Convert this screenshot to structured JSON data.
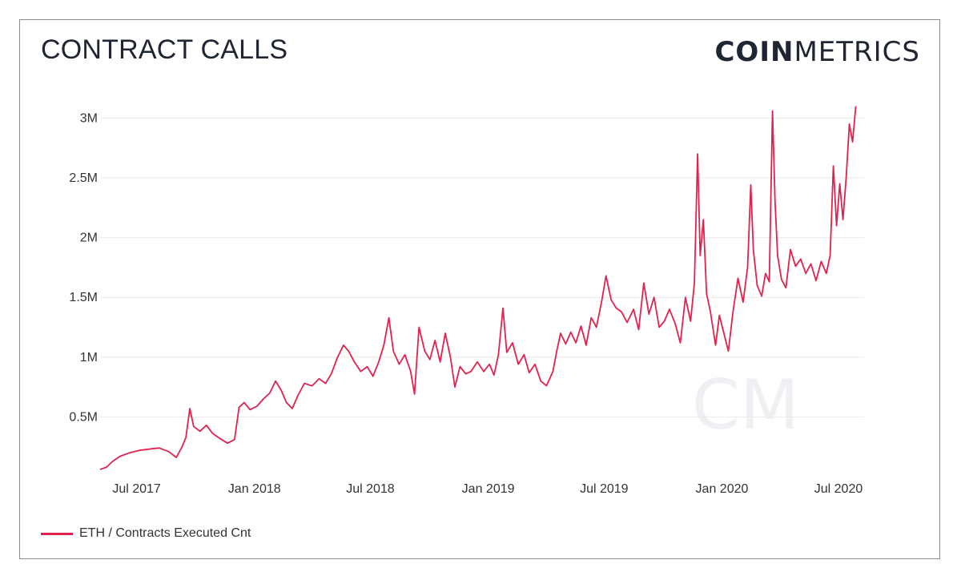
{
  "header": {
    "title": "CONTRACT CALLS",
    "brand_bold": "COIN",
    "brand_light": "METRICS"
  },
  "watermark": "CM",
  "colors": {
    "series": "#e0234e",
    "grid": "#e9e9e9",
    "text": "#1f2533"
  },
  "chart_data": {
    "type": "line",
    "title": "CONTRACT CALLS",
    "xlabel": "",
    "ylabel": "",
    "ylim": [
      0,
      3150000
    ],
    "xlim": [
      "2017-05-05",
      "2020-08-05"
    ],
    "y_ticks": [
      500000,
      1000000,
      1500000,
      2000000,
      2500000,
      3000000
    ],
    "y_tick_labels": [
      "0.5M",
      "1M",
      "1.5M",
      "2M",
      "2.5M",
      "3M"
    ],
    "x_ticks": [
      "2017-07-01",
      "2018-01-01",
      "2018-07-01",
      "2019-01-01",
      "2019-07-01",
      "2020-01-01",
      "2020-07-01"
    ],
    "x_tick_labels": [
      "Jul 2017",
      "Jan 2018",
      "Jul 2018",
      "Jan 2019",
      "Jul 2019",
      "Jan 2020",
      "Jul 2020"
    ],
    "grid": true,
    "legend_position": "bottom-left",
    "series": [
      {
        "name": "ETH / Contracts Executed Cnt",
        "color": "#e0234e",
        "points": [
          [
            "2017-05-05",
            60000
          ],
          [
            "2017-05-15",
            80000
          ],
          [
            "2017-05-25",
            130000
          ],
          [
            "2017-06-05",
            170000
          ],
          [
            "2017-06-20",
            200000
          ],
          [
            "2017-07-05",
            220000
          ],
          [
            "2017-07-20",
            230000
          ],
          [
            "2017-08-05",
            240000
          ],
          [
            "2017-08-20",
            210000
          ],
          [
            "2017-09-01",
            160000
          ],
          [
            "2017-09-10",
            250000
          ],
          [
            "2017-09-16",
            330000
          ],
          [
            "2017-09-22",
            570000
          ],
          [
            "2017-09-28",
            420000
          ],
          [
            "2017-10-08",
            380000
          ],
          [
            "2017-10-18",
            430000
          ],
          [
            "2017-10-28",
            360000
          ],
          [
            "2017-11-08",
            320000
          ],
          [
            "2017-11-20",
            280000
          ],
          [
            "2017-12-01",
            310000
          ],
          [
            "2017-12-08",
            580000
          ],
          [
            "2017-12-16",
            620000
          ],
          [
            "2017-12-25",
            560000
          ],
          [
            "2018-01-05",
            590000
          ],
          [
            "2018-01-15",
            650000
          ],
          [
            "2018-01-25",
            700000
          ],
          [
            "2018-02-03",
            800000
          ],
          [
            "2018-02-12",
            720000
          ],
          [
            "2018-02-20",
            620000
          ],
          [
            "2018-03-01",
            570000
          ],
          [
            "2018-03-10",
            680000
          ],
          [
            "2018-03-20",
            780000
          ],
          [
            "2018-04-01",
            760000
          ],
          [
            "2018-04-12",
            820000
          ],
          [
            "2018-04-22",
            780000
          ],
          [
            "2018-05-01",
            860000
          ],
          [
            "2018-05-10",
            990000
          ],
          [
            "2018-05-20",
            1100000
          ],
          [
            "2018-05-28",
            1050000
          ],
          [
            "2018-06-06",
            960000
          ],
          [
            "2018-06-16",
            880000
          ],
          [
            "2018-06-26",
            920000
          ],
          [
            "2018-07-05",
            840000
          ],
          [
            "2018-07-14",
            960000
          ],
          [
            "2018-07-22",
            1100000
          ],
          [
            "2018-07-30",
            1330000
          ],
          [
            "2018-08-06",
            1050000
          ],
          [
            "2018-08-15",
            940000
          ],
          [
            "2018-08-24",
            1020000
          ],
          [
            "2018-09-02",
            880000
          ],
          [
            "2018-09-08",
            690000
          ],
          [
            "2018-09-15",
            1250000
          ],
          [
            "2018-09-24",
            1050000
          ],
          [
            "2018-10-02",
            980000
          ],
          [
            "2018-10-10",
            1140000
          ],
          [
            "2018-10-18",
            960000
          ],
          [
            "2018-10-26",
            1200000
          ],
          [
            "2018-11-03",
            1000000
          ],
          [
            "2018-11-10",
            750000
          ],
          [
            "2018-11-18",
            920000
          ],
          [
            "2018-11-27",
            860000
          ],
          [
            "2018-12-05",
            880000
          ],
          [
            "2018-12-15",
            960000
          ],
          [
            "2018-12-25",
            880000
          ],
          [
            "2019-01-03",
            940000
          ],
          [
            "2019-01-10",
            850000
          ],
          [
            "2019-01-17",
            1020000
          ],
          [
            "2019-01-24",
            1410000
          ],
          [
            "2019-01-30",
            1040000
          ],
          [
            "2019-02-08",
            1120000
          ],
          [
            "2019-02-17",
            940000
          ],
          [
            "2019-02-26",
            1020000
          ],
          [
            "2019-03-06",
            870000
          ],
          [
            "2019-03-15",
            940000
          ],
          [
            "2019-03-24",
            800000
          ],
          [
            "2019-04-02",
            760000
          ],
          [
            "2019-04-12",
            880000
          ],
          [
            "2019-04-18",
            1050000
          ],
          [
            "2019-04-24",
            1200000
          ],
          [
            "2019-05-02",
            1110000
          ],
          [
            "2019-05-10",
            1210000
          ],
          [
            "2019-05-18",
            1120000
          ],
          [
            "2019-05-26",
            1260000
          ],
          [
            "2019-06-03",
            1100000
          ],
          [
            "2019-06-11",
            1330000
          ],
          [
            "2019-06-19",
            1250000
          ],
          [
            "2019-06-27",
            1460000
          ],
          [
            "2019-07-04",
            1680000
          ],
          [
            "2019-07-12",
            1480000
          ],
          [
            "2019-07-20",
            1410000
          ],
          [
            "2019-07-28",
            1380000
          ],
          [
            "2019-08-06",
            1290000
          ],
          [
            "2019-08-16",
            1400000
          ],
          [
            "2019-08-24",
            1230000
          ],
          [
            "2019-09-01",
            1620000
          ],
          [
            "2019-09-09",
            1360000
          ],
          [
            "2019-09-17",
            1500000
          ],
          [
            "2019-09-25",
            1250000
          ],
          [
            "2019-10-03",
            1300000
          ],
          [
            "2019-10-11",
            1400000
          ],
          [
            "2019-10-20",
            1280000
          ],
          [
            "2019-10-28",
            1120000
          ],
          [
            "2019-11-05",
            1500000
          ],
          [
            "2019-11-13",
            1300000
          ],
          [
            "2019-11-19",
            1620000
          ],
          [
            "2019-11-24",
            2700000
          ],
          [
            "2019-11-28",
            1850000
          ],
          [
            "2019-12-03",
            2150000
          ],
          [
            "2019-12-08",
            1530000
          ],
          [
            "2019-12-14",
            1380000
          ],
          [
            "2019-12-22",
            1100000
          ],
          [
            "2019-12-28",
            1350000
          ],
          [
            "2020-01-04",
            1200000
          ],
          [
            "2020-01-11",
            1050000
          ],
          [
            "2020-01-18",
            1370000
          ],
          [
            "2020-01-26",
            1660000
          ],
          [
            "2020-02-03",
            1460000
          ],
          [
            "2020-02-10",
            1750000
          ],
          [
            "2020-02-15",
            2440000
          ],
          [
            "2020-02-19",
            1900000
          ],
          [
            "2020-02-25",
            1600000
          ],
          [
            "2020-03-03",
            1510000
          ],
          [
            "2020-03-09",
            1700000
          ],
          [
            "2020-03-15",
            1630000
          ],
          [
            "2020-03-20",
            3060000
          ],
          [
            "2020-03-24",
            2300000
          ],
          [
            "2020-03-28",
            1850000
          ],
          [
            "2020-04-03",
            1650000
          ],
          [
            "2020-04-10",
            1580000
          ],
          [
            "2020-04-17",
            1900000
          ],
          [
            "2020-04-25",
            1760000
          ],
          [
            "2020-05-03",
            1820000
          ],
          [
            "2020-05-11",
            1700000
          ],
          [
            "2020-05-19",
            1780000
          ],
          [
            "2020-05-27",
            1640000
          ],
          [
            "2020-06-04",
            1800000
          ],
          [
            "2020-06-12",
            1700000
          ],
          [
            "2020-06-18",
            1850000
          ],
          [
            "2020-06-23",
            2600000
          ],
          [
            "2020-06-28",
            2100000
          ],
          [
            "2020-07-03",
            2450000
          ],
          [
            "2020-07-08",
            2150000
          ],
          [
            "2020-07-13",
            2500000
          ],
          [
            "2020-07-18",
            2950000
          ],
          [
            "2020-07-23",
            2800000
          ],
          [
            "2020-07-28",
            3100000
          ]
        ]
      }
    ]
  }
}
